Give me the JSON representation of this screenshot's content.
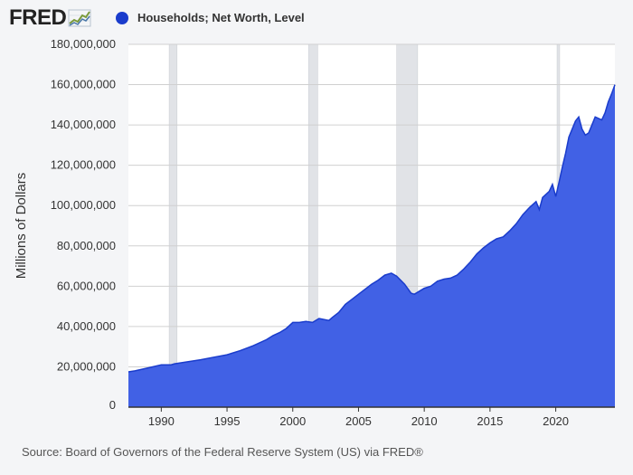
{
  "header": {
    "logo_text": "FRED",
    "logo_icon": "fred-sparkline-icon"
  },
  "colors": {
    "series": "#4161e5",
    "series_line": "#1a3ccc",
    "recession": "#e1e3e7",
    "background": "#f4f5f7",
    "plot_background": "#ffffff",
    "grid": "#d0d0d0"
  },
  "footer": {
    "source": "Source: Board of Governors of the Federal Reserve System (US) via FRED®"
  },
  "chart_data": {
    "type": "area",
    "title": "",
    "ylabel": "Millions of Dollars",
    "xlabel": "",
    "xlim": [
      1987.5,
      2024.5
    ],
    "ylim": [
      0,
      180000000
    ],
    "grid": true,
    "legend_placement": "top-left",
    "x_ticks": [
      1990,
      1995,
      2000,
      2005,
      2010,
      2015,
      2020
    ],
    "x_tick_labels": [
      "1990",
      "1995",
      "2000",
      "2005",
      "2010",
      "2015",
      "2020"
    ],
    "y_ticks": [
      0,
      20000000,
      40000000,
      60000000,
      80000000,
      100000000,
      120000000,
      140000000,
      160000000,
      180000000
    ],
    "y_tick_labels": [
      "0",
      "20,000,000",
      "40,000,000",
      "60,000,000",
      "80,000,000",
      "100,000,000",
      "120,000,000",
      "140,000,000",
      "160,000,000",
      "180,000,000"
    ],
    "recessions": [
      [
        1990.6,
        1991.2
      ],
      [
        2001.2,
        2001.9
      ],
      [
        2007.9,
        2009.5
      ],
      [
        2020.1,
        2020.3
      ]
    ],
    "series": [
      {
        "name": "Households; Net Worth, Level",
        "x": [
          1987.5,
          1988,
          1989,
          1990,
          1990.75,
          1991,
          1992,
          1993,
          1994,
          1995,
          1996,
          1997,
          1998,
          1998.5,
          1999,
          1999.5,
          2000,
          2000.5,
          2001,
          2001.5,
          2002,
          2002.75,
          2003,
          2003.5,
          2004,
          2004.5,
          2005,
          2005.5,
          2006,
          2006.5,
          2007,
          2007.5,
          2007.9,
          2008.5,
          2009,
          2009.25,
          2009.75,
          2010,
          2010.5,
          2011,
          2011.5,
          2012,
          2012.5,
          2013,
          2013.5,
          2014,
          2014.5,
          2015,
          2015.5,
          2016,
          2016.5,
          2017,
          2017.5,
          2018,
          2018.5,
          2018.75,
          2019,
          2019.5,
          2019.75,
          2020,
          2020.25,
          2020.5,
          2020.75,
          2021,
          2021.5,
          2021.75,
          2022,
          2022.25,
          2022.5,
          2022.75,
          2023,
          2023.5,
          2023.75,
          2024,
          2024.25,
          2024.5
        ],
        "values": [
          17500000,
          18000000,
          19500000,
          21000000,
          21000000,
          21500000,
          22500000,
          23500000,
          24800000,
          26000000,
          28000000,
          30500000,
          33500000,
          35500000,
          37000000,
          39000000,
          42000000,
          42000000,
          42500000,
          42000000,
          44000000,
          43000000,
          44500000,
          47000000,
          51000000,
          53500000,
          56000000,
          58500000,
          61000000,
          63000000,
          65500000,
          66500000,
          65000000,
          61000000,
          56500000,
          56000000,
          58000000,
          59000000,
          60000000,
          62500000,
          63500000,
          64000000,
          65500000,
          68500000,
          72000000,
          76000000,
          79000000,
          81500000,
          83500000,
          84500000,
          87500000,
          91000000,
          95500000,
          99000000,
          102000000,
          98000000,
          104000000,
          107000000,
          110500000,
          104500000,
          111500000,
          119000000,
          126000000,
          134000000,
          142000000,
          144000000,
          138000000,
          135000000,
          136000000,
          140000000,
          144000000,
          142500000,
          146000000,
          151500000,
          155500000,
          160000000
        ]
      }
    ]
  }
}
